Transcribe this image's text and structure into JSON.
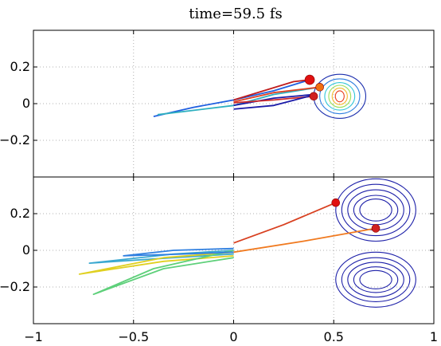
{
  "chart_data": {
    "type": "line",
    "title": "time=59.5 fs",
    "grid": true,
    "xlim": [
      -1,
      1
    ],
    "xticks": [
      -1,
      -0.5,
      0,
      0.5,
      1
    ],
    "xtick_labels": [
      "−1",
      "−0.5",
      "0",
      "0.5",
      "1"
    ],
    "panels": [
      {
        "id": "top",
        "ylim": [
          -0.4,
          0.4
        ],
        "yticks": [
          -0.2,
          0,
          0.2
        ],
        "ytick_labels": [
          "−0.2",
          "0",
          "0.2"
        ],
        "contours": [
          {
            "center": [
              0.53,
              0.04
            ],
            "levels": [
              {
                "rx": 0.13,
                "ry": 0.12,
                "color": "#1c2fae"
              },
              {
                "rx": 0.1,
                "ry": 0.095,
                "color": "#2f7fe0"
              },
              {
                "rx": 0.075,
                "ry": 0.075,
                "color": "#32c6d8"
              },
              {
                "rx": 0.055,
                "ry": 0.06,
                "color": "#9ae05a"
              },
              {
                "rx": 0.038,
                "ry": 0.045,
                "color": "#f4b82e"
              },
              {
                "rx": 0.022,
                "ry": 0.03,
                "color": "#e83a1c"
              }
            ]
          }
        ],
        "trajectories": [
          {
            "color": "#1f5fe0",
            "points": [
              [
                -0.4,
                -0.07
              ],
              [
                -0.2,
                -0.02
              ],
              [
                0,
                0.02
              ],
              [
                0.2,
                0.07
              ],
              [
                0.38,
                0.13
              ]
            ]
          },
          {
            "color": "#2fb0c0",
            "points": [
              [
                -0.38,
                -0.06
              ],
              [
                -0.15,
                -0.03
              ],
              [
                0,
                -0.01
              ],
              [
                0.2,
                0.05
              ],
              [
                0.43,
                0.09
              ]
            ]
          },
          {
            "color": "#c01c1c",
            "points": [
              [
                0,
                0.02
              ],
              [
                0.15,
                0.07
              ],
              [
                0.3,
                0.12
              ],
              [
                0.38,
                0.13
              ]
            ]
          },
          {
            "color": "#e04020",
            "points": [
              [
                0,
                0.01
              ],
              [
                0.2,
                0.06
              ],
              [
                0.43,
                0.09
              ]
            ]
          },
          {
            "color": "#1a1aa8",
            "points": [
              [
                0,
                -0.01
              ],
              [
                0.2,
                0.03
              ],
              [
                0.4,
                0.05
              ]
            ]
          },
          {
            "color": "#d02a2a",
            "points": [
              [
                0,
                0.005
              ],
              [
                0.2,
                0.02
              ],
              [
                0.4,
                0.04
              ]
            ]
          },
          {
            "color": "#1a1aa8",
            "points": [
              [
                0,
                -0.03
              ],
              [
                0.2,
                -0.01
              ],
              [
                0.41,
                0.05
              ]
            ]
          }
        ],
        "markers": [
          {
            "x": 0.38,
            "y": 0.13,
            "color": "#e01010",
            "size": 6
          },
          {
            "x": 0.43,
            "y": 0.09,
            "color": "#f07010",
            "size": 5
          },
          {
            "x": 0.4,
            "y": 0.04,
            "color": "#d02020",
            "size": 5
          }
        ]
      },
      {
        "id": "bottom",
        "ylim": [
          -0.4,
          0.4
        ],
        "yticks": [
          -0.2,
          0,
          0.2
        ],
        "ytick_labels": [
          "−0.2",
          "0",
          "0.2"
        ],
        "contours": [
          {
            "center": [
              0.71,
              0.22
            ],
            "levels": [
              {
                "rx": 0.2,
                "ry": 0.17,
                "color": "#1c1fa8"
              },
              {
                "rx": 0.17,
                "ry": 0.14,
                "color": "#1c1fa8"
              },
              {
                "rx": 0.14,
                "ry": 0.11,
                "color": "#1c1fa8"
              },
              {
                "rx": 0.11,
                "ry": 0.08,
                "color": "#1c1fa8"
              },
              {
                "rx": 0.08,
                "ry": 0.06,
                "color": "#1c1fa8"
              }
            ]
          },
          {
            "center": [
              0.71,
              -0.16
            ],
            "levels": [
              {
                "rx": 0.2,
                "ry": 0.15,
                "color": "#1c1fa8"
              },
              {
                "rx": 0.17,
                "ry": 0.12,
                "color": "#1c1fa8"
              },
              {
                "rx": 0.14,
                "ry": 0.095,
                "color": "#1c1fa8"
              },
              {
                "rx": 0.11,
                "ry": 0.07,
                "color": "#1c1fa8"
              },
              {
                "rx": 0.08,
                "ry": 0.05,
                "color": "#1c1fa8"
              }
            ]
          }
        ],
        "trajectories": [
          {
            "color": "#d84020",
            "points": [
              [
                0,
                0.04
              ],
              [
                0.25,
                0.14
              ],
              [
                0.51,
                0.26
              ]
            ]
          },
          {
            "color": "#f07a20",
            "points": [
              [
                0,
                -0.01
              ],
              [
                0.35,
                0.05
              ],
              [
                0.71,
                0.12
              ]
            ]
          },
          {
            "color": "#3aa8d0",
            "points": [
              [
                0,
                0.0
              ],
              [
                -0.3,
                -0.02
              ],
              [
                -0.72,
                -0.07
              ],
              [
                -0.3,
                -0.04
              ],
              [
                0,
                -0.02
              ]
            ]
          },
          {
            "color": "#e0d020",
            "points": [
              [
                0,
                -0.01
              ],
              [
                -0.35,
                -0.04
              ],
              [
                -0.77,
                -0.13
              ],
              [
                -0.35,
                -0.06
              ],
              [
                0,
                -0.03
              ]
            ]
          },
          {
            "color": "#5ed07a",
            "points": [
              [
                0,
                0.0
              ],
              [
                -0.4,
                -0.1
              ],
              [
                -0.7,
                -0.24
              ],
              [
                -0.35,
                -0.1
              ],
              [
                0,
                -0.04
              ]
            ]
          },
          {
            "color": "#2f7fe0",
            "points": [
              [
                0,
                0.01
              ],
              [
                -0.3,
                0.0
              ],
              [
                -0.55,
                -0.03
              ],
              [
                -0.25,
                -0.02
              ],
              [
                0,
                -0.01
              ]
            ]
          }
        ],
        "markers": [
          {
            "x": 0.51,
            "y": 0.26,
            "color": "#e01010",
            "size": 5
          },
          {
            "x": 0.71,
            "y": 0.12,
            "color": "#d02020",
            "size": 5
          }
        ]
      }
    ]
  }
}
